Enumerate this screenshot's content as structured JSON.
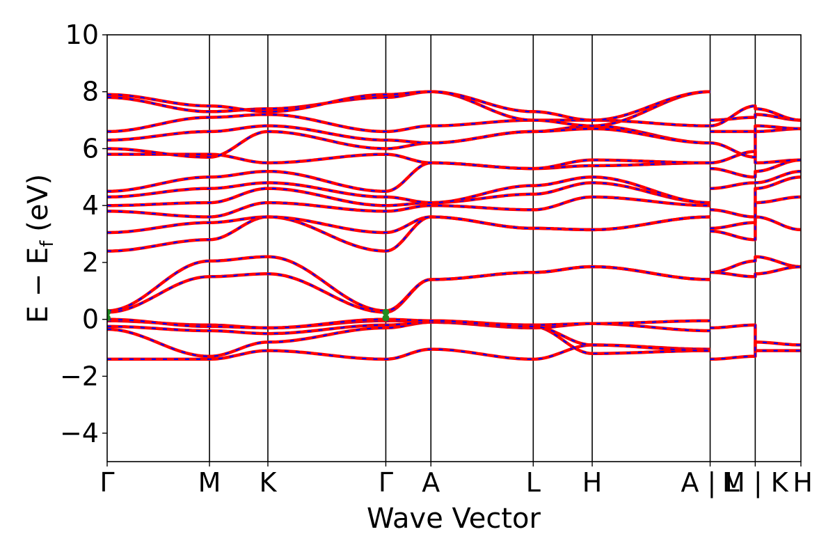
{
  "chart_data": {
    "type": "line",
    "title": "",
    "xlabel": "Wave Vector",
    "ylabel": "E − E",
    "ylabel_sub": "f",
    "ylabel_unit": " (eV)",
    "ylim": [
      -5,
      10
    ],
    "yticks": [
      -4,
      -2,
      0,
      2,
      4,
      6,
      8,
      10
    ],
    "ytick_labels": [
      "−4",
      "−2",
      "0",
      "2",
      "4",
      "6",
      "8",
      "10"
    ],
    "xlim": [
      0,
      12
    ],
    "kpoints": [
      {
        "label": "Γ",
        "x": 0
      },
      {
        "label": "M",
        "x": 1.77
      },
      {
        "label": "K",
        "x": 2.78
      },
      {
        "label": "Γ",
        "x": 4.82
      },
      {
        "label": "A",
        "x": 5.6
      },
      {
        "label": "L",
        "x": 7.37
      },
      {
        "label": "H",
        "x": 8.39
      },
      {
        "label": "A | L",
        "x": 10.43
      },
      {
        "label": "M | K",
        "x": 11.21
      },
      {
        "label": "H",
        "x": 12.0
      }
    ],
    "grid": false,
    "legend": "none",
    "colors": {
      "spin_up": "#ff0000",
      "spin_down": "#0000ff",
      "marker": "#228b22"
    },
    "series": [
      {
        "values": [
          [
            0,
            -1.4
          ],
          [
            1.77,
            -1.4
          ],
          [
            2.78,
            -1.1
          ],
          [
            4.82,
            -1.4
          ],
          [
            5.6,
            -1.05
          ],
          [
            7.37,
            -1.4
          ],
          [
            8.39,
            -0.9
          ],
          [
            10.43,
            -1.05
          ]
        ]
      },
      {
        "values": [
          [
            0,
            -0.35
          ],
          [
            1.77,
            -1.3
          ],
          [
            2.78,
            -0.8
          ],
          [
            4.82,
            -0.3
          ],
          [
            5.6,
            -0.1
          ],
          [
            7.37,
            -0.25
          ],
          [
            8.39,
            -1.2
          ],
          [
            10.43,
            -1.1
          ]
        ]
      },
      {
        "values": [
          [
            0,
            -0.25
          ],
          [
            1.77,
            -0.4
          ],
          [
            2.78,
            -0.5
          ],
          [
            4.82,
            -0.2
          ],
          [
            5.6,
            -0.1
          ],
          [
            7.37,
            -0.3
          ],
          [
            8.39,
            -0.15
          ],
          [
            10.43,
            -0.4
          ]
        ]
      },
      {
        "values": [
          [
            0,
            -0.05
          ],
          [
            1.77,
            -0.2
          ],
          [
            2.78,
            -0.3
          ],
          [
            4.82,
            -0.05
          ],
          [
            5.6,
            -0.05
          ],
          [
            7.37,
            -0.2
          ],
          [
            8.39,
            -0.15
          ],
          [
            10.43,
            -0.05
          ]
        ]
      },
      {
        "values": [
          [
            0,
            0.0
          ],
          [
            1.77,
            -0.25
          ],
          [
            2.78,
            -0.3
          ],
          [
            4.82,
            0.0
          ],
          [
            5.6,
            -0.05
          ],
          [
            7.37,
            -0.25
          ],
          [
            8.39,
            -0.9
          ],
          [
            10.43,
            -1.1
          ]
        ]
      },
      {
        "values": [
          [
            0,
            0.25
          ],
          [
            1.77,
            1.5
          ],
          [
            2.78,
            1.6
          ],
          [
            4.82,
            0.25
          ],
          [
            5.6,
            1.4
          ],
          [
            7.37,
            1.65
          ],
          [
            8.39,
            1.85
          ],
          [
            10.43,
            1.4
          ]
        ]
      },
      {
        "values": [
          [
            0,
            0.3
          ],
          [
            1.77,
            2.05
          ],
          [
            2.78,
            2.2
          ],
          [
            4.82,
            0.3
          ],
          [
            5.6,
            1.4
          ],
          [
            7.37,
            1.65
          ],
          [
            8.39,
            1.85
          ],
          [
            10.43,
            1.4
          ]
        ]
      },
      {
        "values": [
          [
            0,
            2.4
          ],
          [
            1.77,
            2.8
          ],
          [
            2.78,
            3.6
          ],
          [
            4.82,
            2.4
          ],
          [
            5.6,
            3.6
          ],
          [
            7.37,
            3.2
          ],
          [
            8.39,
            3.15
          ],
          [
            10.43,
            3.6
          ]
        ]
      },
      {
        "values": [
          [
            0,
            3.05
          ],
          [
            1.77,
            3.4
          ],
          [
            2.78,
            3.6
          ],
          [
            4.82,
            3.05
          ],
          [
            5.6,
            3.6
          ],
          [
            7.37,
            3.2
          ],
          [
            8.39,
            3.15
          ],
          [
            10.43,
            3.6
          ]
        ]
      },
      {
        "values": [
          [
            0,
            3.8
          ],
          [
            1.77,
            3.6
          ],
          [
            2.78,
            4.1
          ],
          [
            4.82,
            3.8
          ],
          [
            5.6,
            4.0
          ],
          [
            7.37,
            3.85
          ],
          [
            8.39,
            4.3
          ],
          [
            10.43,
            4.0
          ]
        ]
      },
      {
        "values": [
          [
            0,
            4.0
          ],
          [
            1.77,
            4.1
          ],
          [
            2.78,
            4.6
          ],
          [
            4.82,
            4.0
          ],
          [
            5.6,
            4.1
          ],
          [
            7.37,
            4.4
          ],
          [
            8.39,
            4.8
          ],
          [
            10.43,
            4.1
          ]
        ]
      },
      {
        "values": [
          [
            0,
            4.3
          ],
          [
            1.77,
            4.6
          ],
          [
            2.78,
            4.8
          ],
          [
            4.82,
            4.3
          ],
          [
            5.6,
            4.1
          ],
          [
            7.37,
            4.7
          ],
          [
            8.39,
            5.0
          ],
          [
            10.43,
            4.1
          ]
        ]
      },
      {
        "values": [
          [
            0,
            4.5
          ],
          [
            1.77,
            5.0
          ],
          [
            2.78,
            5.2
          ],
          [
            4.82,
            4.5
          ],
          [
            5.6,
            5.5
          ],
          [
            7.37,
            5.3
          ],
          [
            8.39,
            5.4
          ],
          [
            10.43,
            5.5
          ]
        ]
      },
      {
        "values": [
          [
            0,
            5.8
          ],
          [
            1.77,
            5.8
          ],
          [
            2.78,
            5.5
          ],
          [
            4.82,
            5.8
          ],
          [
            5.6,
            5.5
          ],
          [
            7.37,
            5.3
          ],
          [
            8.39,
            5.6
          ],
          [
            10.43,
            5.5
          ]
        ]
      },
      {
        "values": [
          [
            0,
            6.0
          ],
          [
            1.77,
            5.7
          ],
          [
            2.78,
            6.6
          ],
          [
            4.82,
            6.0
          ],
          [
            5.6,
            6.2
          ],
          [
            7.37,
            6.6
          ],
          [
            8.39,
            6.8
          ],
          [
            10.43,
            6.2
          ]
        ]
      },
      {
        "values": [
          [
            0,
            6.3
          ],
          [
            1.77,
            6.6
          ],
          [
            2.78,
            6.8
          ],
          [
            4.82,
            6.3
          ],
          [
            5.6,
            6.2
          ],
          [
            7.37,
            6.6
          ],
          [
            8.39,
            6.7
          ],
          [
            10.43,
            6.2
          ]
        ]
      },
      {
        "values": [
          [
            0,
            6.6
          ],
          [
            1.77,
            7.1
          ],
          [
            2.78,
            7.2
          ],
          [
            4.82,
            6.6
          ],
          [
            5.6,
            6.8
          ],
          [
            7.37,
            7.0
          ],
          [
            8.39,
            7.0
          ],
          [
            10.43,
            6.8
          ]
        ]
      },
      {
        "values": [
          [
            0,
            7.8
          ],
          [
            1.77,
            7.3
          ],
          [
            2.78,
            7.4
          ],
          [
            4.82,
            7.8
          ],
          [
            5.6,
            8.0
          ],
          [
            7.37,
            7.0
          ],
          [
            8.39,
            6.8
          ],
          [
            10.43,
            8.0
          ]
        ]
      },
      {
        "values": [
          [
            0,
            7.9
          ],
          [
            1.77,
            7.5
          ],
          [
            2.78,
            7.3
          ],
          [
            4.82,
            7.9
          ],
          [
            5.6,
            8.0
          ],
          [
            7.37,
            7.3
          ],
          [
            8.39,
            7.0
          ],
          [
            10.43,
            8.0
          ]
        ]
      },
      {
        "values": [
          [
            10.43,
            -1.4
          ],
          [
            11.21,
            -1.3
          ],
          [
            11.21,
            -0.8
          ],
          [
            12.0,
            -0.9
          ]
        ]
      },
      {
        "values": [
          [
            10.43,
            -0.3
          ],
          [
            11.21,
            -0.2
          ],
          [
            11.21,
            -1.1
          ],
          [
            12.0,
            -1.1
          ]
        ]
      },
      {
        "values": [
          [
            10.43,
            1.65
          ],
          [
            11.21,
            2.05
          ],
          [
            11.21,
            2.2
          ],
          [
            12.0,
            1.85
          ]
        ]
      },
      {
        "values": [
          [
            10.43,
            1.65
          ],
          [
            11.21,
            1.5
          ],
          [
            11.21,
            1.6
          ],
          [
            12.0,
            1.85
          ]
        ]
      },
      {
        "values": [
          [
            10.43,
            3.2
          ],
          [
            11.21,
            3.4
          ],
          [
            11.21,
            3.6
          ],
          [
            12.0,
            3.15
          ]
        ]
      },
      {
        "values": [
          [
            10.43,
            3.1
          ],
          [
            11.21,
            2.8
          ],
          [
            11.21,
            4.1
          ],
          [
            12.0,
            4.3
          ]
        ]
      },
      {
        "values": [
          [
            10.43,
            3.85
          ],
          [
            11.21,
            3.6
          ],
          [
            11.21,
            4.6
          ],
          [
            12.0,
            5.0
          ]
        ]
      },
      {
        "values": [
          [
            10.43,
            4.6
          ],
          [
            11.21,
            4.8
          ],
          [
            11.21,
            4.8
          ],
          [
            12.0,
            5.2
          ]
        ]
      },
      {
        "values": [
          [
            10.43,
            5.3
          ],
          [
            11.21,
            5.0
          ],
          [
            11.21,
            5.2
          ],
          [
            12.0,
            5.6
          ]
        ]
      },
      {
        "values": [
          [
            10.43,
            5.5
          ],
          [
            11.21,
            5.9
          ],
          [
            11.21,
            5.5
          ],
          [
            12.0,
            5.6
          ]
        ]
      },
      {
        "values": [
          [
            10.43,
            6.2
          ],
          [
            11.21,
            5.7
          ],
          [
            11.21,
            6.6
          ],
          [
            12.0,
            6.7
          ]
        ]
      },
      {
        "values": [
          [
            10.43,
            6.6
          ],
          [
            11.21,
            6.6
          ],
          [
            11.21,
            6.8
          ],
          [
            12.0,
            6.7
          ]
        ]
      },
      {
        "values": [
          [
            10.43,
            7.0
          ],
          [
            11.21,
            7.1
          ],
          [
            11.21,
            7.2
          ],
          [
            12.0,
            7.0
          ]
        ]
      },
      {
        "values": [
          [
            10.43,
            6.8
          ],
          [
            11.21,
            7.5
          ],
          [
            11.21,
            7.4
          ],
          [
            12.0,
            7.0
          ]
        ]
      }
    ],
    "markers": [
      {
        "x": 0,
        "y": 0.25
      },
      {
        "x": 0,
        "y": 0.05
      },
      {
        "x": 4.82,
        "y": 0.25
      },
      {
        "x": 4.82,
        "y": 0.05
      }
    ]
  }
}
